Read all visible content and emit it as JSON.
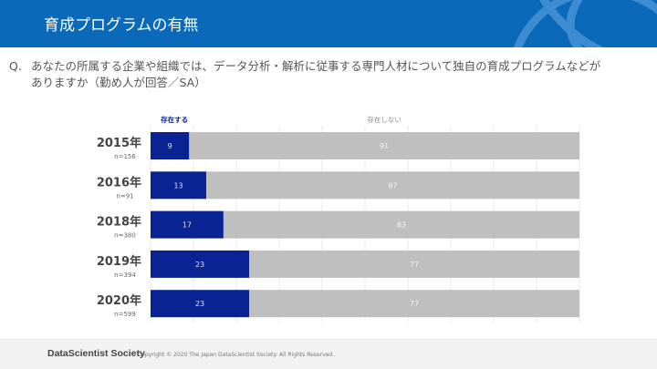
{
  "header": {
    "title": "育成プログラムの有無",
    "brand_color": "#0a69b8"
  },
  "question": {
    "prefix": "Q.",
    "line1": "あなたの所属する企業や組織では、データ分析・解析に従事する専門人材について独自の育成プログラムなどが",
    "line2": "ありますか（勤め人が回答／SA）"
  },
  "chart_data": {
    "type": "bar",
    "orientation": "horizontal",
    "stacked": true,
    "xlim": [
      0,
      100
    ],
    "grid": true,
    "categories": [
      "2015年",
      "2016年",
      "2018年",
      "2019年",
      "2020年"
    ],
    "sample_sizes": [
      "n=156",
      "n=91",
      "n=380",
      "n=394",
      "n=599"
    ],
    "series": [
      {
        "name": "存在する",
        "values": [
          9,
          13,
          17,
          23,
          23
        ],
        "color": "#0a2392"
      },
      {
        "name": "存在しない",
        "values": [
          91,
          87,
          83,
          77,
          77
        ],
        "color": "#bfbfbf"
      }
    ]
  },
  "footer": {
    "brand": "DataScientist Society",
    "copyright": "Copyright © 2020  The Japan DataScientist Society. All Rights Reserved."
  }
}
